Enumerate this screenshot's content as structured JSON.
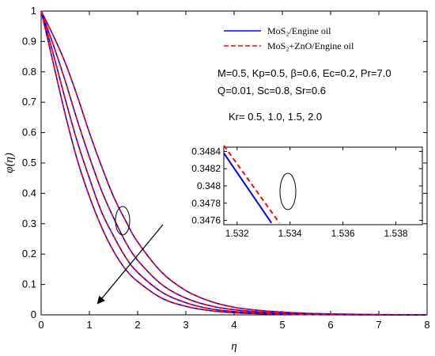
{
  "chart_data": [
    {
      "type": "line",
      "xlabel": "η",
      "ylabel": "φ(η)",
      "xlim": [
        0,
        8
      ],
      "ylim": [
        0,
        1
      ],
      "xticks": [
        "0",
        "1",
        "2",
        "3",
        "4",
        "5",
        "6",
        "7",
        "8"
      ],
      "yticks": [
        "0",
        "0.1",
        "0.2",
        "0.3",
        "0.4",
        "0.5",
        "0.6",
        "0.7",
        "0.8",
        "0.9",
        "1"
      ],
      "grid": false,
      "legend": {
        "placement": "top-right",
        "entries": [
          {
            "label": "MoS₂/Engine oil",
            "color": "#0000ff",
            "style": "solid"
          },
          {
            "label": "MoS₂+ZnO/Engine oil",
            "color": "#ff0000",
            "style": "dashed"
          }
        ]
      },
      "annotations": {
        "params_line1": "M=0.5, Kp=0.5, β=0.6, Ec=0.2, Pr=7.0",
        "params_line2": "Q=0.01, Sc=0.8, Sr=0.6",
        "kr_label": "Kr= 0.5, 1.0, 1.5, 2.0",
        "arrow_direction": "increasing Kr"
      },
      "x": [
        0,
        0.25,
        0.5,
        0.75,
        1,
        1.25,
        1.5,
        1.75,
        2,
        2.5,
        3,
        3.5,
        4,
        4.5,
        5,
        5.5,
        6,
        7,
        8
      ],
      "series": [
        {
          "kr": "0.5",
          "values": [
            1.0,
            0.92,
            0.83,
            0.72,
            0.6,
            0.49,
            0.39,
            0.31,
            0.24,
            0.14,
            0.08,
            0.045,
            0.025,
            0.015,
            0.009,
            0.005,
            0.003,
            0.001,
            0.0
          ]
        },
        {
          "kr": "1.0",
          "values": [
            1.0,
            0.89,
            0.77,
            0.64,
            0.52,
            0.41,
            0.32,
            0.24,
            0.18,
            0.1,
            0.055,
            0.03,
            0.017,
            0.01,
            0.005,
            0.003,
            0.002,
            0.0005,
            0.0
          ]
        },
        {
          "kr": "1.5",
          "values": [
            1.0,
            0.86,
            0.71,
            0.57,
            0.45,
            0.34,
            0.26,
            0.19,
            0.14,
            0.075,
            0.04,
            0.02,
            0.011,
            0.006,
            0.003,
            0.0015,
            0.001,
            0.0003,
            0.0
          ]
        },
        {
          "kr": "2.0",
          "values": [
            1.0,
            0.83,
            0.66,
            0.51,
            0.39,
            0.29,
            0.21,
            0.15,
            0.11,
            0.055,
            0.028,
            0.014,
            0.007,
            0.004,
            0.002,
            0.001,
            0.0005,
            0.0001,
            0.0
          ]
        }
      ]
    },
    {
      "type": "line",
      "role": "inset",
      "xlim": [
        1.5315,
        1.539
      ],
      "ylim": [
        0.34755,
        0.34845
      ],
      "xticks": [
        "1.532",
        "1.534",
        "1.536",
        "1.538"
      ],
      "yticks": [
        "0.3476",
        "0.3478",
        "0.348",
        "0.3482",
        "0.3484"
      ],
      "series": [
        {
          "name": "MoS₂/Engine oil",
          "color": "#0000ff",
          "style": "solid",
          "x": [
            1.5315,
            1.5333
          ],
          "values": [
            0.34838,
            0.34757
          ]
        },
        {
          "name": "MoS₂+ZnO/Engine oil",
          "color": "#ff0000",
          "style": "dashed",
          "x": [
            1.5315,
            1.5336
          ],
          "values": [
            0.34847,
            0.34757
          ]
        }
      ]
    }
  ]
}
